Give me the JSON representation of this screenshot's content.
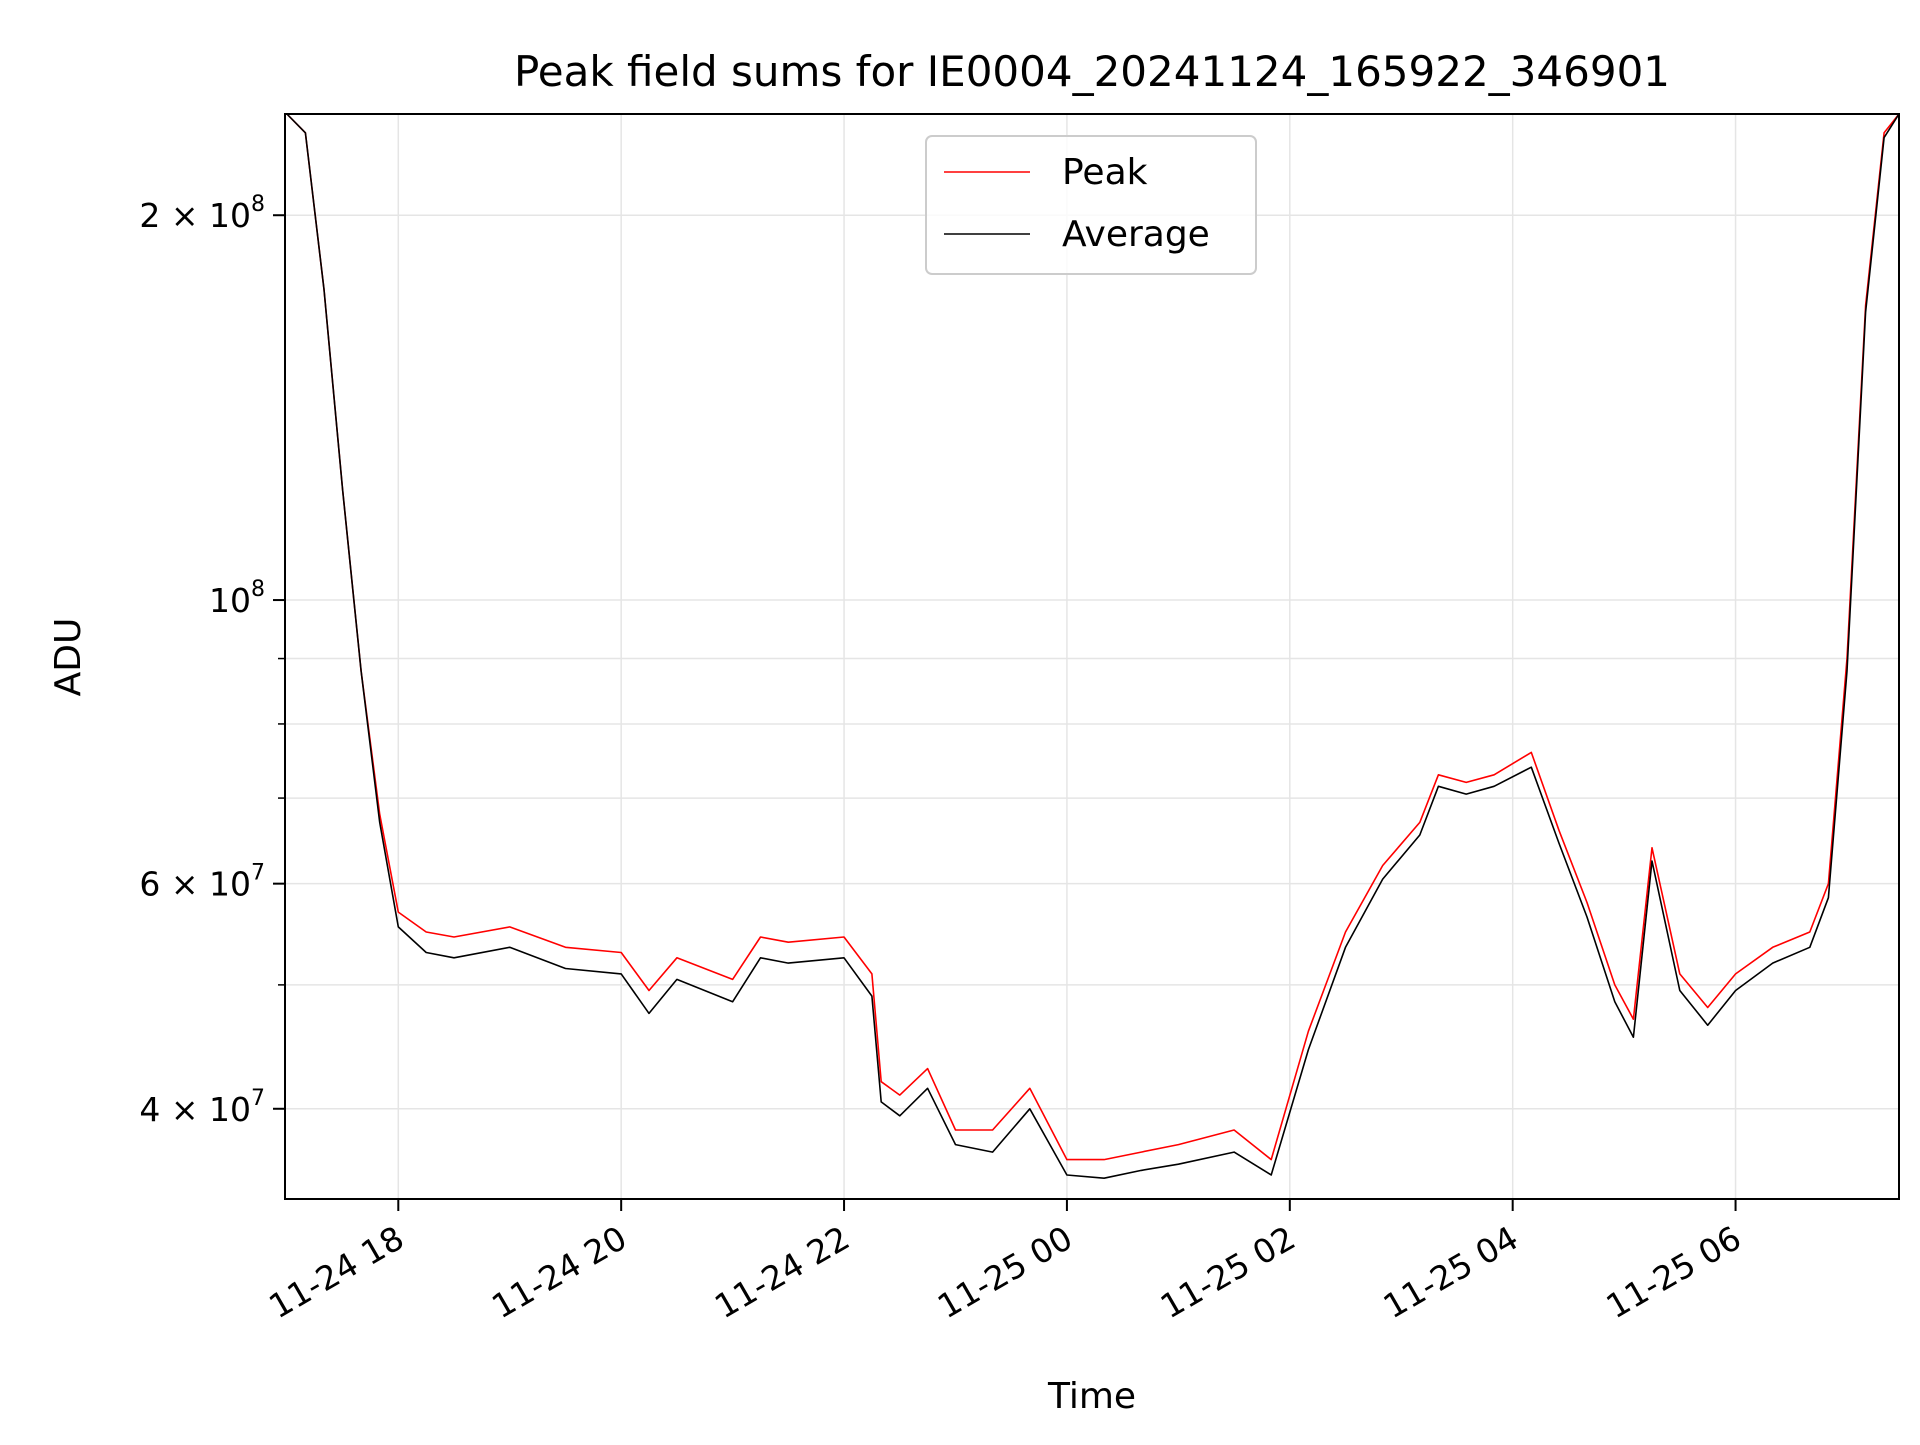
{
  "chart_data": {
    "type": "line",
    "title": "Peak field sums for IE0004_20241124_165922_346901",
    "xlabel": "Time",
    "ylabel": "ADU",
    "x_type": "datetime",
    "xlim": [
      "2024-11-24 16:59",
      "2024-11-25 07:28"
    ],
    "ylim": [
      34000000,
      240000000
    ],
    "yscale": "log",
    "grid": true,
    "legend_position": "upper center",
    "x_ticks": [
      "11-24 18",
      "11-24 20",
      "11-24 22",
      "11-25 00",
      "11-25 02",
      "11-25 04",
      "11-25 06"
    ],
    "y_ticks": [
      {
        "value": 40000000,
        "label_base": "4 × 10",
        "label_exp": "7"
      },
      {
        "value": 60000000,
        "label_base": "6 × 10",
        "label_exp": "7"
      },
      {
        "value": 100000000,
        "label_base": "10",
        "label_exp": "8"
      },
      {
        "value": 200000000,
        "label_base": "2 × 10",
        "label_exp": "8"
      }
    ],
    "y_minor_ticks": [
      50000000,
      70000000,
      80000000,
      90000000
    ],
    "series": [
      {
        "name": "Peak",
        "color": "#ff0000",
        "points": [
          [
            "2024-11-24 17:00",
            240000000
          ],
          [
            "2024-11-24 17:10",
            232000000
          ],
          [
            "2024-11-24 17:20",
            175000000
          ],
          [
            "2024-11-24 17:30",
            122000000
          ],
          [
            "2024-11-24 17:40",
            88000000
          ],
          [
            "2024-11-24 17:50",
            68000000
          ],
          [
            "2024-11-24 18:00",
            57000000
          ],
          [
            "2024-11-24 18:15",
            55000000
          ],
          [
            "2024-11-24 18:30",
            54500000
          ],
          [
            "2024-11-24 19:00",
            55500000
          ],
          [
            "2024-11-24 19:30",
            53500000
          ],
          [
            "2024-11-24 20:00",
            53000000
          ],
          [
            "2024-11-24 20:15",
            49500000
          ],
          [
            "2024-11-24 20:30",
            52500000
          ],
          [
            "2024-11-24 21:00",
            50500000
          ],
          [
            "2024-11-24 21:15",
            54500000
          ],
          [
            "2024-11-24 21:30",
            54000000
          ],
          [
            "2024-11-24 22:00",
            54500000
          ],
          [
            "2024-11-24 22:15",
            51000000
          ],
          [
            "2024-11-24 22:20",
            42000000
          ],
          [
            "2024-11-24 22:30",
            41000000
          ],
          [
            "2024-11-24 22:45",
            43000000
          ],
          [
            "2024-11-24 23:00",
            38500000
          ],
          [
            "2024-11-24 23:20",
            38500000
          ],
          [
            "2024-11-24 23:40",
            41500000
          ],
          [
            "2024-11-25 00:00",
            36500000
          ],
          [
            "2024-11-25 00:20",
            36500000
          ],
          [
            "2024-11-25 00:40",
            37000000
          ],
          [
            "2024-11-25 01:00",
            37500000
          ],
          [
            "2024-11-25 01:30",
            38500000
          ],
          [
            "2024-11-25 01:50",
            36500000
          ],
          [
            "2024-11-25 02:10",
            46000000
          ],
          [
            "2024-11-25 02:30",
            55000000
          ],
          [
            "2024-11-25 02:50",
            62000000
          ],
          [
            "2024-11-25 03:10",
            67000000
          ],
          [
            "2024-11-25 03:20",
            73000000
          ],
          [
            "2024-11-25 03:35",
            72000000
          ],
          [
            "2024-11-25 03:50",
            73000000
          ],
          [
            "2024-11-25 04:10",
            76000000
          ],
          [
            "2024-11-25 04:25",
            66000000
          ],
          [
            "2024-11-25 04:40",
            58000000
          ],
          [
            "2024-11-25 04:55",
            50000000
          ],
          [
            "2024-11-25 05:05",
            47000000
          ],
          [
            "2024-11-25 05:15",
            64000000
          ],
          [
            "2024-11-25 05:30",
            51000000
          ],
          [
            "2024-11-25 05:45",
            48000000
          ],
          [
            "2024-11-25 06:00",
            51000000
          ],
          [
            "2024-11-25 06:20",
            53500000
          ],
          [
            "2024-11-25 06:40",
            55000000
          ],
          [
            "2024-11-25 06:50",
            60000000
          ],
          [
            "2024-11-25 07:00",
            90000000
          ],
          [
            "2024-11-25 07:10",
            170000000
          ],
          [
            "2024-11-25 07:20",
            232000000
          ],
          [
            "2024-11-25 07:28",
            240000000
          ]
        ]
      },
      {
        "name": "Average",
        "color": "#000000",
        "points": [
          [
            "2024-11-24 17:00",
            240000000
          ],
          [
            "2024-11-24 17:10",
            232000000
          ],
          [
            "2024-11-24 17:20",
            175000000
          ],
          [
            "2024-11-24 17:30",
            122000000
          ],
          [
            "2024-11-24 17:40",
            88000000
          ],
          [
            "2024-11-24 17:50",
            67000000
          ],
          [
            "2024-11-24 18:00",
            55500000
          ],
          [
            "2024-11-24 18:15",
            53000000
          ],
          [
            "2024-11-24 18:30",
            52500000
          ],
          [
            "2024-11-24 19:00",
            53500000
          ],
          [
            "2024-11-24 19:30",
            51500000
          ],
          [
            "2024-11-24 20:00",
            51000000
          ],
          [
            "2024-11-24 20:15",
            47500000
          ],
          [
            "2024-11-24 20:30",
            50500000
          ],
          [
            "2024-11-24 21:00",
            48500000
          ],
          [
            "2024-11-24 21:15",
            52500000
          ],
          [
            "2024-11-24 21:30",
            52000000
          ],
          [
            "2024-11-24 22:00",
            52500000
          ],
          [
            "2024-11-24 22:15",
            49000000
          ],
          [
            "2024-11-24 22:20",
            40500000
          ],
          [
            "2024-11-24 22:30",
            39500000
          ],
          [
            "2024-11-24 22:45",
            41500000
          ],
          [
            "2024-11-24 23:00",
            37500000
          ],
          [
            "2024-11-24 23:20",
            37000000
          ],
          [
            "2024-11-24 23:40",
            40000000
          ],
          [
            "2024-11-25 00:00",
            35500000
          ],
          [
            "2024-11-25 00:20",
            35300000
          ],
          [
            "2024-11-25 00:40",
            35800000
          ],
          [
            "2024-11-25 01:00",
            36200000
          ],
          [
            "2024-11-25 01:30",
            37000000
          ],
          [
            "2024-11-25 01:50",
            35500000
          ],
          [
            "2024-11-25 02:10",
            44500000
          ],
          [
            "2024-11-25 02:30",
            53500000
          ],
          [
            "2024-11-25 02:50",
            60500000
          ],
          [
            "2024-11-25 03:10",
            65500000
          ],
          [
            "2024-11-25 03:20",
            71500000
          ],
          [
            "2024-11-25 03:35",
            70500000
          ],
          [
            "2024-11-25 03:50",
            71500000
          ],
          [
            "2024-11-25 04:10",
            74000000
          ],
          [
            "2024-11-25 04:25",
            64500000
          ],
          [
            "2024-11-25 04:40",
            56500000
          ],
          [
            "2024-11-25 04:55",
            48500000
          ],
          [
            "2024-11-25 05:05",
            45500000
          ],
          [
            "2024-11-25 05:15",
            62500000
          ],
          [
            "2024-11-25 05:30",
            49500000
          ],
          [
            "2024-11-25 05:45",
            46500000
          ],
          [
            "2024-11-25 06:00",
            49500000
          ],
          [
            "2024-11-25 06:20",
            52000000
          ],
          [
            "2024-11-25 06:40",
            53500000
          ],
          [
            "2024-11-25 06:50",
            58500000
          ],
          [
            "2024-11-25 07:00",
            88000000
          ],
          [
            "2024-11-25 07:10",
            168000000
          ],
          [
            "2024-11-25 07:20",
            230000000
          ],
          [
            "2024-11-25 07:28",
            240000000
          ]
        ]
      }
    ]
  }
}
